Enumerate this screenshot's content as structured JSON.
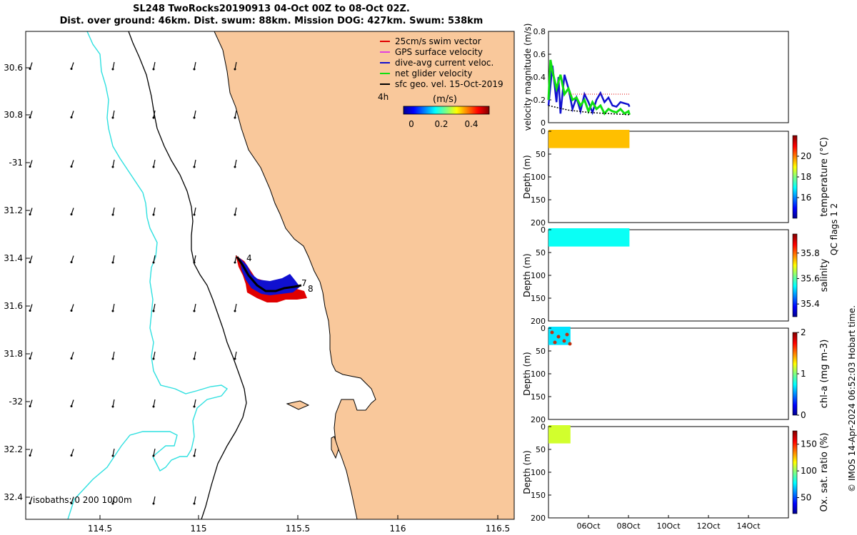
{
  "title": {
    "line1": "SL248 TwoRocks20190913 04-Oct 00Z to 08-Oct 02Z.",
    "line2": "Dist. over ground: 46km. Dist. swum: 88km. Mission DOG: 427km. Swum: 538km"
  },
  "colors": {
    "land": "#F9C89B",
    "ocean": "#FFFFFF",
    "isobath_200": "#000000",
    "isobath_1000": "#2FE0E0",
    "swim_vector": "#E00000",
    "gps_velocity": "#E040E0",
    "dive_avg": "#1010D0",
    "net_glider": "#10E010",
    "sfc_geo": "#000000"
  },
  "map": {
    "lon_ticks": [
      "114.5",
      "115",
      "115.5",
      "116",
      "116.5"
    ],
    "lat_ticks": [
      "30.6",
      "30.8",
      "-31",
      "31.2",
      "31.4",
      "31.6",
      "31.8",
      "-32",
      "32.2",
      "32.4"
    ],
    "legend": [
      {
        "label": "25cm/s swim vector",
        "color": "#E00000"
      },
      {
        "label": "GPS surface velocity",
        "color": "#E040E0"
      },
      {
        "label": "dive-avg current veloc.",
        "color": "#1010D0"
      },
      {
        "label": "net glider velocity",
        "color": "#10E010"
      },
      {
        "label": "sfc geo. vel. 15-Oct-2019",
        "color": "#000000"
      }
    ],
    "interval_label": "4h",
    "colorbar_unit": "(m/s)",
    "colorbar_ticks": [
      "0",
      "0.2",
      "0.4"
    ],
    "isobaths_text": "isobaths: 0   200  1000m",
    "track_labels": [
      "4",
      "7",
      "8"
    ]
  },
  "chart_data": [
    {
      "type": "line",
      "ylabel": "velocity magnitude (m/s)",
      "ylim": [
        0,
        0.8
      ],
      "yticks": [
        "0",
        "0.2",
        "0.4",
        "0.6",
        "0.8"
      ],
      "xlim": [
        4,
        16
      ],
      "series": [
        {
          "name": "dive-avg current veloc.",
          "x": [
            4.0,
            4.2,
            4.4,
            4.5,
            4.6,
            4.8,
            5.0,
            5.2,
            5.4,
            5.6,
            5.8,
            6.0,
            6.2,
            6.4,
            6.6,
            6.8,
            7.0,
            7.2,
            7.4,
            7.6,
            7.8,
            8.0,
            8.05
          ],
          "values": [
            0.15,
            0.5,
            0.18,
            0.4,
            0.08,
            0.42,
            0.3,
            0.12,
            0.22,
            0.1,
            0.25,
            0.18,
            0.09,
            0.2,
            0.26,
            0.18,
            0.22,
            0.15,
            0.14,
            0.18,
            0.17,
            0.16,
            0.14
          ]
        },
        {
          "name": "net glider velocity",
          "x": [
            4.0,
            4.1,
            4.2,
            4.4,
            4.6,
            4.8,
            5.0,
            5.2,
            5.4,
            5.6,
            5.8,
            6.0,
            6.2,
            6.4,
            6.6,
            6.8,
            7.0,
            7.2,
            7.4,
            7.6,
            7.8,
            8.0,
            8.05
          ],
          "values": [
            0.2,
            0.55,
            0.45,
            0.3,
            0.42,
            0.25,
            0.3,
            0.2,
            0.22,
            0.15,
            0.2,
            0.1,
            0.18,
            0.12,
            0.15,
            0.08,
            0.12,
            0.1,
            0.09,
            0.12,
            0.08,
            0.1,
            0.07
          ]
        },
        {
          "name": "sfc geo. vel.",
          "x": [
            4.0,
            4.5,
            5.0,
            5.5,
            6.0,
            6.5,
            7.0,
            7.5,
            8.0,
            8.05
          ],
          "values": [
            0.15,
            0.13,
            0.11,
            0.1,
            0.09,
            0.085,
            0.08,
            0.075,
            0.07,
            0.07
          ]
        },
        {
          "name": "25cm/s swim vector",
          "x": [
            5.0,
            5.5,
            6.0,
            6.5,
            7.0,
            7.5,
            8.0,
            8.05
          ],
          "values": [
            0.25,
            0.25,
            0.25,
            0.25,
            0.25,
            0.25,
            0.25,
            0.25
          ]
        }
      ]
    },
    {
      "type": "heatmap",
      "variable": "temperature",
      "colorbar_label": "temperature (°C)",
      "colorbar_ticks": [
        "16",
        "18",
        "20"
      ],
      "clim": [
        14,
        22
      ],
      "ylabel": "Depth (m)",
      "ylim": [
        200,
        0
      ],
      "yticks": [
        "0",
        "50",
        "100",
        "150",
        "200"
      ],
      "data_time_range": [
        4.0,
        8.05
      ],
      "data_depth_range": [
        0,
        40
      ],
      "typical_value": 19.5
    },
    {
      "type": "heatmap",
      "variable": "salinity",
      "colorbar_label": "salinity",
      "colorbar_ticks": [
        "35.4",
        "35.6",
        "35.8"
      ],
      "clim": [
        35.3,
        35.95
      ],
      "ylabel": "Depth (m)",
      "ylim": [
        200,
        0
      ],
      "yticks": [
        "0",
        "50",
        "100",
        "150",
        "200"
      ],
      "data_time_range": [
        4.0,
        8.05
      ],
      "data_depth_range": [
        0,
        40
      ],
      "typical_value": 35.55
    },
    {
      "type": "heatmap",
      "variable": "chl-a",
      "colorbar_label": "chl-a (mg m-3)",
      "colorbar_ticks": [
        "0",
        "1",
        "2"
      ],
      "clim": [
        0,
        2
      ],
      "ylabel": "Depth (m)",
      "ylim": [
        200,
        0
      ],
      "yticks": [
        "0",
        "50",
        "100",
        "150",
        "200"
      ],
      "data_time_range": [
        4.0,
        5.1
      ],
      "data_depth_range": [
        0,
        40
      ],
      "typical_value": 0.7
    },
    {
      "type": "heatmap",
      "variable": "oxygen saturation",
      "colorbar_label": "Ox. sat. ratio (%)",
      "colorbar_ticks": [
        "50",
        "100",
        "150"
      ],
      "clim": [
        20,
        175
      ],
      "ylabel": "Depth (m)",
      "ylim": [
        200,
        0
      ],
      "yticks": [
        "0",
        "50",
        "100",
        "150",
        "200"
      ],
      "data_time_range": [
        4.0,
        5.1
      ],
      "data_depth_range": [
        0,
        40
      ],
      "typical_value": 110,
      "xticks": [
        "06Oct",
        "08Oct",
        "10Oct",
        "12Oct",
        "14Oct"
      ]
    }
  ],
  "salinity_qc_label": "QC flags 1  2",
  "copyright": "© IMOS 14-Apr-2024 06:52:03 Hobart time."
}
